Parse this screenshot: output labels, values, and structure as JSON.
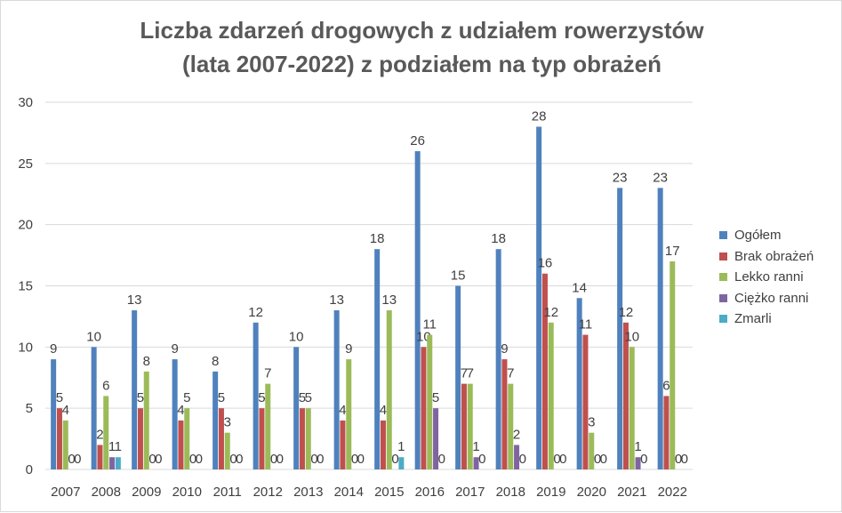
{
  "chart_data": {
    "type": "bar",
    "title_lines": [
      "Liczba zdarzeń drogowych z udziałem rowerzystów",
      "(lata 2007-2022) z podziałem na typ obrażeń"
    ],
    "categories": [
      "2007",
      "2008",
      "2009",
      "2010",
      "2011",
      "2012",
      "2013",
      "2014",
      "2015",
      "2016",
      "2017",
      "2018",
      "2019",
      "2020",
      "2021",
      "2022"
    ],
    "ylim": [
      0,
      30
    ],
    "yticks": [
      0,
      5,
      10,
      15,
      20,
      25,
      30
    ],
    "grid": true,
    "legend_position": "right",
    "series": [
      {
        "name": "Ogółem",
        "color": "#4f81bd",
        "values": [
          9,
          10,
          13,
          9,
          8,
          12,
          10,
          13,
          18,
          26,
          15,
          18,
          28,
          14,
          23,
          23
        ]
      },
      {
        "name": "Brak obrażeń",
        "color": "#c0504d",
        "values": [
          5,
          2,
          5,
          4,
          5,
          5,
          5,
          4,
          4,
          10,
          7,
          9,
          16,
          11,
          12,
          6
        ]
      },
      {
        "name": "Lekko ranni",
        "color": "#9bbb59",
        "values": [
          4,
          6,
          8,
          5,
          3,
          7,
          5,
          9,
          13,
          11,
          7,
          7,
          12,
          3,
          10,
          17
        ]
      },
      {
        "name": "Ciężko ranni",
        "color": "#8064a2",
        "values": [
          0,
          1,
          0,
          0,
          0,
          0,
          0,
          0,
          0,
          5,
          1,
          2,
          0,
          0,
          1,
          0
        ]
      },
      {
        "name": "Zmarli",
        "color": "#4bacc6",
        "values": [
          0,
          1,
          0,
          0,
          0,
          0,
          0,
          0,
          1,
          0,
          0,
          0,
          0,
          0,
          0,
          0
        ]
      }
    ]
  }
}
